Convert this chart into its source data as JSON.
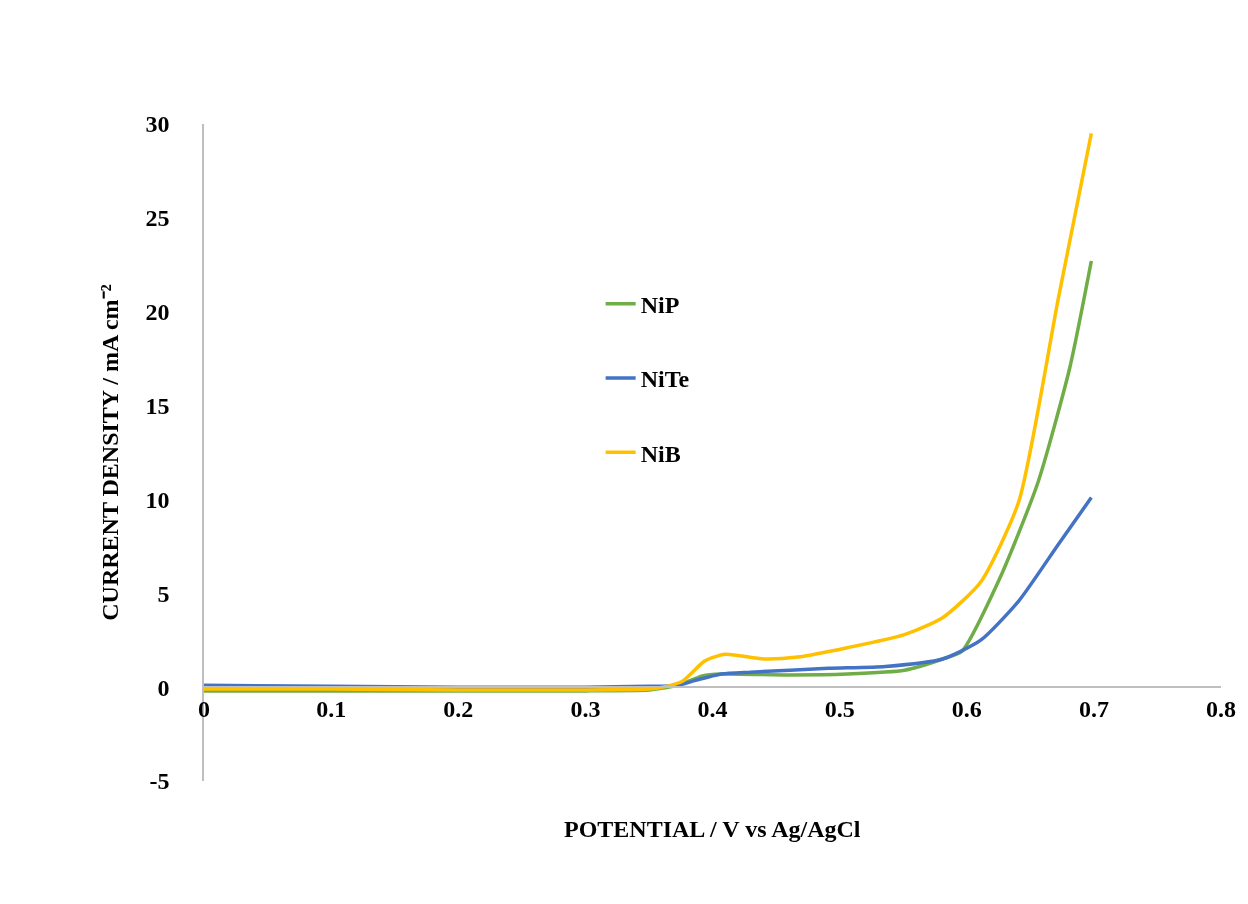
{
  "chart_data": {
    "type": "line",
    "xlabel": "POTENTIAL / V vs Ag/AgCl",
    "ylabel": "CURRENT DENSITY / mA cm⁻²",
    "xlim": [
      0,
      0.8
    ],
    "xticks": [
      0,
      0.1,
      0.2,
      0.3,
      0.4,
      0.5,
      0.6,
      0.7,
      0.8
    ],
    "ylim": [
      -5,
      30
    ],
    "yticks": [
      -5,
      0,
      5,
      10,
      15,
      20,
      25,
      30
    ],
    "legend": "left",
    "marker": "none",
    "line_style": "solid",
    "series": [
      {
        "name": "NiP",
        "color": "#70ad47",
        "x": [
          0,
          0.1,
          0.2,
          0.3,
          0.35,
          0.361,
          0.373,
          0.392,
          0.407,
          0.461,
          0.506,
          0.551,
          0.581,
          0.596,
          0.626,
          0.656,
          0.681,
          0.698
        ],
        "values": [
          -0.2,
          -0.2,
          -0.2,
          -0.2,
          -0.15,
          -0.05,
          0.1,
          0.6,
          0.7,
          0.65,
          0.7,
          0.9,
          1.5,
          1.9,
          5.8,
          10.9,
          17.0,
          22.7
        ]
      },
      {
        "name": "NiTe",
        "color": "#4472c4",
        "x": [
          0,
          0.1,
          0.2,
          0.3,
          0.35,
          0.361,
          0.373,
          0.386,
          0.407,
          0.43,
          0.491,
          0.536,
          0.581,
          0.611,
          0.641,
          0.672,
          0.698
        ],
        "values": [
          0.1,
          0.05,
          0.0,
          0.0,
          0.05,
          0.05,
          0.1,
          0.35,
          0.7,
          0.8,
          1.0,
          1.1,
          1.5,
          2.5,
          4.6,
          7.6,
          10.1
        ]
      },
      {
        "name": "NiB",
        "color": "#ffc000",
        "x": [
          0,
          0.1,
          0.2,
          0.3,
          0.35,
          0.361,
          0.376,
          0.394,
          0.41,
          0.44,
          0.467,
          0.506,
          0.551,
          0.581,
          0.611,
          0.641,
          0.672,
          0.698
        ],
        "values": [
          -0.1,
          -0.1,
          -0.15,
          -0.15,
          -0.1,
          0.0,
          0.3,
          1.4,
          1.75,
          1.5,
          1.6,
          2.1,
          2.8,
          3.7,
          5.6,
          9.9,
          20.7,
          29.5
        ]
      }
    ]
  }
}
